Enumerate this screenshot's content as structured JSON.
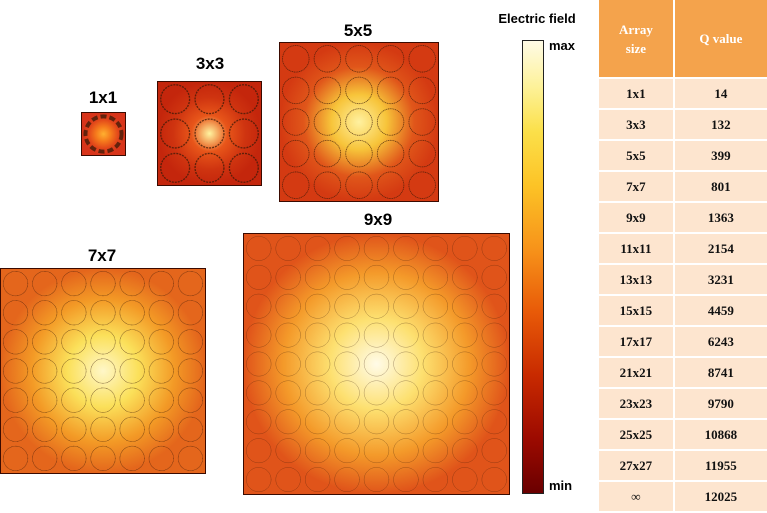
{
  "arrays": [
    {
      "label": "1x1",
      "n": 1
    },
    {
      "label": "3x3",
      "n": 3
    },
    {
      "label": "5x5",
      "n": 5
    },
    {
      "label": "7x7",
      "n": 7
    },
    {
      "label": "9x9",
      "n": 9
    }
  ],
  "colorbar": {
    "title": "Electric field",
    "max_label": "max",
    "min_label": "min"
  },
  "table": {
    "header_col1_line1": "Array",
    "header_col1_line2": "size",
    "header_col2": "Q value",
    "rows": [
      {
        "size": "1x1",
        "q": "14"
      },
      {
        "size": "3x3",
        "q": "132"
      },
      {
        "size": "5x5",
        "q": "399"
      },
      {
        "size": "7x7",
        "q": "801"
      },
      {
        "size": "9x9",
        "q": "1363"
      },
      {
        "size": "11x11",
        "q": "2154"
      },
      {
        "size": "13x13",
        "q": "3231"
      },
      {
        "size": "15x15",
        "q": "4459"
      },
      {
        "size": "17x17",
        "q": "6243"
      },
      {
        "size": "21x21",
        "q": "8741"
      },
      {
        "size": "23x23",
        "q": "9790"
      },
      {
        "size": "25x25",
        "q": "10868"
      },
      {
        "size": "27x27",
        "q": "11955"
      },
      {
        "size": "∞",
        "q": "12025"
      }
    ]
  }
}
